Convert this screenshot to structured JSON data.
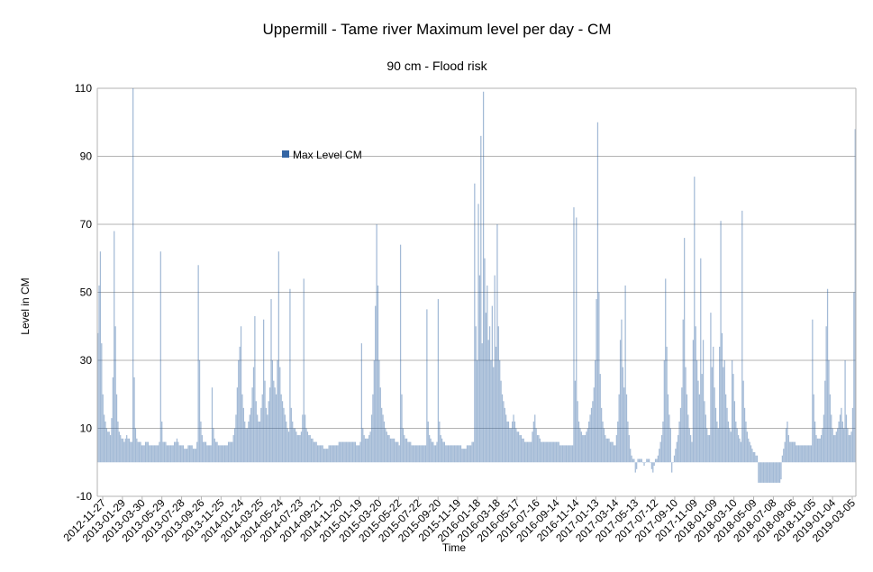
{
  "chart_data": {
    "type": "bar",
    "title": "Uppermill - Tame river Maximum level per day  - CM",
    "subtitle": "90 cm - Flood risk",
    "xlabel": "Time",
    "ylabel": "Level in CM",
    "ylim": [
      -10,
      110
    ],
    "yticks": [
      -10,
      10,
      30,
      50,
      70,
      90,
      110
    ],
    "grid": true,
    "legend": "top-left",
    "start_date": "2012-11-27",
    "x_ticks": [
      "2012-11-27",
      "2013-01-29",
      "2013-03-30",
      "2013-05-29",
      "2013-07-28",
      "2013-09-26",
      "2013-11-25",
      "2014-01-24",
      "2014-03-25",
      "2014-05-24",
      "2014-07-23",
      "2014-09-21",
      "2014-11-20",
      "2015-01-19",
      "2015-03-20",
      "2015-05-22",
      "2015-07-22",
      "2015-09-20",
      "2015-11-19",
      "2016-01-18",
      "2016-03-18",
      "2016-05-17",
      "2016-07-16",
      "2016-09-14",
      "2016-11-14",
      "2017-01-13",
      "2017-03-14",
      "2017-05-13",
      "2017-07-12",
      "2017-09-10",
      "2017-11-09",
      "2018-01-09",
      "2018-03-10",
      "2018-05-09",
      "2018-07-08",
      "2018-09-06",
      "2018-11-05",
      "2019-01-04",
      "2019-03-05"
    ],
    "series": [
      {
        "name": "Max Level CM",
        "color": "#3465a4",
        "step_days": 3,
        "values": [
          38,
          52,
          62,
          35,
          20,
          14,
          12,
          10,
          9,
          9,
          8,
          13,
          25,
          68,
          40,
          20,
          12,
          9,
          8,
          7,
          7,
          6,
          7,
          8,
          7,
          7,
          6,
          6,
          110,
          25,
          10,
          7,
          6,
          6,
          6,
          5,
          5,
          5,
          6,
          6,
          6,
          5,
          5,
          5,
          5,
          5,
          5,
          5,
          5,
          6,
          62,
          12,
          6,
          6,
          6,
          5,
          5,
          5,
          5,
          5,
          5,
          6,
          6,
          7,
          6,
          5,
          5,
          5,
          5,
          4,
          4,
          4,
          5,
          5,
          5,
          5,
          4,
          4,
          4,
          6,
          58,
          30,
          12,
          8,
          6,
          6,
          6,
          5,
          5,
          5,
          5,
          22,
          10,
          7,
          6,
          6,
          5,
          5,
          5,
          5,
          5,
          5,
          5,
          5,
          6,
          6,
          6,
          6,
          8,
          10,
          14,
          22,
          30,
          34,
          40,
          20,
          16,
          12,
          10,
          10,
          12,
          14,
          16,
          22,
          28,
          43,
          18,
          14,
          12,
          12,
          16,
          20,
          42,
          24,
          16,
          14,
          18,
          22,
          48,
          30,
          24,
          22,
          20,
          30,
          62,
          28,
          20,
          18,
          16,
          14,
          12,
          10,
          9,
          51,
          16,
          12,
          10,
          10,
          9,
          8,
          8,
          8,
          9,
          14,
          54,
          14,
          10,
          9,
          8,
          8,
          7,
          7,
          6,
          6,
          6,
          5,
          5,
          5,
          5,
          5,
          4,
          4,
          4,
          4,
          5,
          5,
          5,
          5,
          5,
          5,
          5,
          5,
          6,
          6,
          6,
          6,
          6,
          6,
          6,
          6,
          6,
          6,
          6,
          6,
          6,
          6,
          5,
          5,
          5,
          6,
          35,
          10,
          8,
          7,
          7,
          7,
          8,
          9,
          14,
          20,
          30,
          46,
          70,
          52,
          30,
          22,
          16,
          14,
          12,
          10,
          9,
          8,
          8,
          7,
          7,
          7,
          7,
          6,
          6,
          6,
          5,
          64,
          20,
          10,
          8,
          7,
          7,
          6,
          6,
          6,
          5,
          5,
          5,
          5,
          5,
          5,
          5,
          5,
          5,
          5,
          5,
          5,
          45,
          12,
          8,
          7,
          6,
          6,
          5,
          5,
          6,
          48,
          12,
          8,
          7,
          6,
          6,
          5,
          5,
          5,
          5,
          5,
          5,
          5,
          5,
          5,
          5,
          5,
          5,
          5,
          4,
          4,
          4,
          4,
          5,
          5,
          5,
          5,
          6,
          6,
          82,
          40,
          30,
          76,
          55,
          96,
          35,
          109,
          60,
          44,
          52,
          36,
          40,
          30,
          46,
          28,
          55,
          34,
          70,
          40,
          30,
          24,
          20,
          18,
          16,
          14,
          12,
          12,
          10,
          10,
          12,
          14,
          12,
          10,
          9,
          9,
          8,
          8,
          7,
          7,
          6,
          6,
          6,
          6,
          6,
          6,
          9,
          12,
          14,
          10,
          8,
          8,
          7,
          6,
          6,
          6,
          6,
          6,
          6,
          6,
          6,
          6,
          6,
          6,
          6,
          6,
          6,
          6,
          5,
          5,
          5,
          5,
          5,
          5,
          5,
          5,
          5,
          5,
          5,
          75,
          24,
          72,
          18,
          12,
          10,
          9,
          8,
          8,
          8,
          9,
          10,
          12,
          14,
          16,
          18,
          22,
          30,
          48,
          100,
          50,
          26,
          16,
          12,
          10,
          8,
          7,
          7,
          7,
          6,
          6,
          6,
          5,
          5,
          8,
          12,
          20,
          36,
          42,
          28,
          22,
          52,
          20,
          12,
          8,
          4,
          2,
          1,
          1,
          -3,
          -2,
          1,
          1,
          1,
          1,
          0,
          -1,
          0,
          1,
          1,
          1,
          0,
          -2,
          -3,
          -1,
          1,
          1,
          2,
          4,
          6,
          8,
          12,
          30,
          54,
          34,
          20,
          14,
          10,
          -3,
          0,
          2,
          4,
          6,
          8,
          12,
          16,
          22,
          42,
          66,
          28,
          20,
          14,
          10,
          8,
          6,
          36,
          84,
          40,
          30,
          24,
          20,
          60,
          26,
          36,
          18,
          14,
          10,
          8,
          8,
          44,
          28,
          34,
          22,
          16,
          12,
          10,
          34,
          71,
          38,
          28,
          30,
          20,
          16,
          12,
          10,
          9,
          30,
          26,
          18,
          12,
          10,
          8,
          7,
          6,
          74,
          24,
          16,
          12,
          9,
          7,
          6,
          5,
          4,
          3,
          3,
          2,
          2,
          -6,
          -6,
          -6,
          -6,
          -6,
          -6,
          -6,
          -6,
          -6,
          -6,
          -6,
          -6,
          -6,
          -6,
          -6,
          -6,
          -6,
          -6,
          -5,
          2,
          4,
          6,
          10,
          12,
          8,
          6,
          6,
          6,
          6,
          6,
          5,
          5,
          5,
          5,
          5,
          5,
          5,
          5,
          5,
          5,
          5,
          5,
          5,
          42,
          20,
          12,
          8,
          7,
          7,
          7,
          8,
          10,
          14,
          24,
          40,
          51,
          30,
          20,
          14,
          10,
          8,
          8,
          9,
          10,
          12,
          14,
          16,
          12,
          10,
          30,
          14,
          10,
          8,
          8,
          9,
          16,
          50,
          98
        ]
      }
    ]
  }
}
